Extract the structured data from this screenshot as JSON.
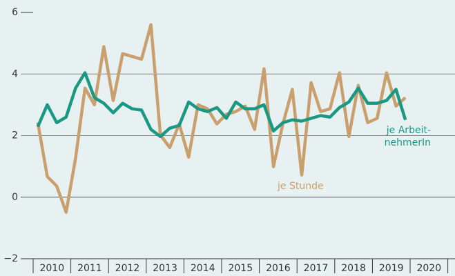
{
  "chart_data": {
    "type": "line",
    "x": [
      2010.125,
      2010.375,
      2010.625,
      2010.875,
      2011.125,
      2011.375,
      2011.625,
      2011.875,
      2012.125,
      2012.375,
      2012.625,
      2012.875,
      2013.125,
      2013.375,
      2013.625,
      2013.875,
      2014.125,
      2014.375,
      2014.625,
      2014.875,
      2015.125,
      2015.375,
      2015.625,
      2015.875,
      2016.125,
      2016.375,
      2016.625,
      2016.875,
      2017.125,
      2017.375,
      2017.625,
      2017.875,
      2018.125,
      2018.375,
      2018.625,
      2018.875,
      2019.125,
      2019.375,
      2019.625,
      2019.875
    ],
    "series": [
      {
        "name": "je Stunde",
        "color": "#c9a06d",
        "values": [
          2.42,
          0.67,
          0.36,
          -0.49,
          1.26,
          3.54,
          3.0,
          4.89,
          3.14,
          4.66,
          4.57,
          4.48,
          5.6,
          2.02,
          1.61,
          2.38,
          1.3,
          3.0,
          2.87,
          2.38,
          2.69,
          2.78,
          2.96,
          2.2,
          4.17,
          0.99,
          2.38,
          3.5,
          0.72,
          3.72,
          2.78,
          2.87,
          4.04,
          1.97,
          3.63,
          2.42,
          2.56,
          4.04,
          2.96,
          3.23
        ]
      },
      {
        "name": "je Arbeit-nehmerIn",
        "color": "#1a9883",
        "values": [
          2.29,
          3.0,
          2.42,
          2.6,
          3.54,
          4.04,
          3.23,
          3.05,
          2.74,
          3.05,
          2.87,
          2.83,
          2.2,
          1.97,
          2.24,
          2.33,
          3.09,
          2.87,
          2.78,
          2.91,
          2.56,
          3.09,
          2.87,
          2.87,
          3.0,
          2.15,
          2.42,
          2.51,
          2.47,
          2.56,
          2.65,
          2.6,
          2.91,
          3.09,
          3.54,
          3.05,
          3.05,
          3.14,
          3.5,
          2.51
        ]
      }
    ],
    "xlim": [
      2010,
      2021
    ],
    "xticks": [
      {
        "value": 2010.5,
        "label": "2010"
      },
      {
        "value": 2011.5,
        "label": "2011"
      },
      {
        "value": 2012.5,
        "label": "2012"
      },
      {
        "value": 2013.5,
        "label": "2013"
      },
      {
        "value": 2014.5,
        "label": "2014"
      },
      {
        "value": 2015.5,
        "label": "2015"
      },
      {
        "value": 2016.5,
        "label": "2016"
      },
      {
        "value": 2017.5,
        "label": "2017"
      },
      {
        "value": 2018.5,
        "label": "2018"
      },
      {
        "value": 2019.5,
        "label": "2019"
      },
      {
        "value": 2020.5,
        "label": "2020"
      }
    ],
    "xminor": [
      2010,
      2011,
      2012,
      2013,
      2014,
      2015,
      2016,
      2017,
      2018,
      2019,
      2020,
      2021
    ],
    "ylim": [
      -2,
      6
    ],
    "yticks": [
      {
        "value": -2,
        "label": "−2"
      },
      0,
      2,
      4,
      6
    ],
    "grid": true
  }
}
